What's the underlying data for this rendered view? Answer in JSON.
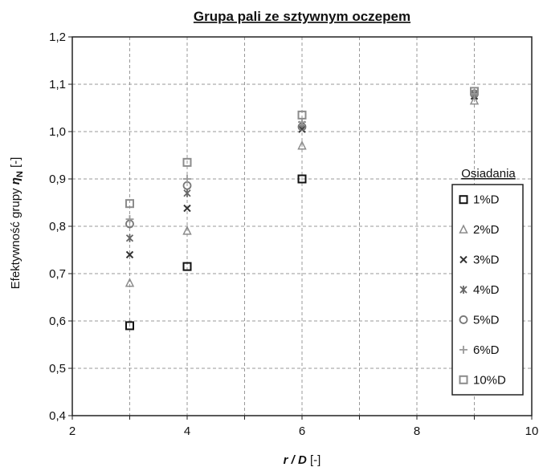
{
  "chart_data": {
    "type": "scatter",
    "title": "Grupa pali ze sztywnym oczepem",
    "xlabel": {
      "italic": "r / D",
      "normal": " [-]"
    },
    "ylabel": {
      "prefix": "Efektywność grupy ",
      "symbol": "η",
      "subscript": "N",
      "suffix": " [-]"
    },
    "xlim": [
      2,
      10
    ],
    "ylim": [
      0.4,
      1.2
    ],
    "x_ticks": [
      2,
      3,
      4,
      5,
      6,
      7,
      8,
      9,
      10
    ],
    "x_tick_labels": [
      "2",
      "",
      "4",
      "",
      "6",
      "",
      "8",
      "",
      "10"
    ],
    "y_ticks": [
      0.4,
      0.5,
      0.6,
      0.7,
      0.8,
      0.9,
      1.0,
      1.1,
      1.2
    ],
    "y_tick_labels": [
      "0,4",
      "0,5",
      "0,6",
      "0,7",
      "0,8",
      "0,9",
      "1,0",
      "1,1",
      "1,2"
    ],
    "grid": true,
    "legend": {
      "title": "Osiadania",
      "position": "right"
    },
    "series": [
      {
        "name": "1%D",
        "marker": "square",
        "color": "#111111",
        "x": [
          3,
          4,
          6
        ],
        "y": [
          0.59,
          0.715,
          0.9
        ]
      },
      {
        "name": "2%D",
        "marker": "triangle",
        "color": "#8c8c8c",
        "x": [
          3,
          4,
          6,
          9
        ],
        "y": [
          0.68,
          0.79,
          0.97,
          1.065
        ]
      },
      {
        "name": "3%D",
        "marker": "x",
        "color": "#333333",
        "x": [
          3,
          4,
          6,
          9
        ],
        "y": [
          0.74,
          0.838,
          1.005,
          1.075
        ]
      },
      {
        "name": "4%D",
        "marker": "star",
        "color": "#666666",
        "x": [
          3,
          4,
          6,
          9
        ],
        "y": [
          0.775,
          0.87,
          1.015,
          1.08
        ]
      },
      {
        "name": "5%D",
        "marker": "circle",
        "color": "#777777",
        "x": [
          3,
          4,
          6,
          9
        ],
        "y": [
          0.805,
          0.886,
          1.01,
          1.08
        ]
      },
      {
        "name": "6%D",
        "marker": "plus",
        "color": "#999999",
        "x": [
          3,
          4,
          6,
          9
        ],
        "y": [
          0.815,
          0.9,
          1.02,
          1.08
        ]
      },
      {
        "name": "10%D",
        "marker": "square",
        "color": "#8c8c8c",
        "x": [
          3,
          4,
          6,
          9
        ],
        "y": [
          0.848,
          0.935,
          1.035,
          1.085
        ]
      }
    ]
  }
}
